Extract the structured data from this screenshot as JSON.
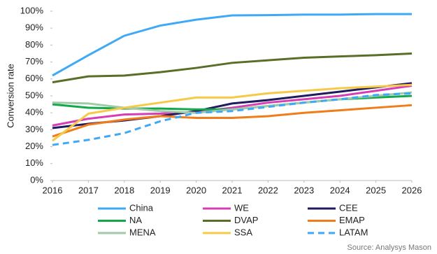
{
  "chart_data": {
    "type": "line",
    "y_label": "Conversion rate",
    "source": "Source: Analysys Mason",
    "x": [
      2016,
      2017,
      2018,
      2019,
      2020,
      2021,
      2022,
      2023,
      2024,
      2025,
      2026
    ],
    "xlim": [
      2016,
      2026
    ],
    "xticks": [
      2016,
      2017,
      2018,
      2019,
      2020,
      2021,
      2022,
      2023,
      2024,
      2025,
      2026
    ],
    "ylim": [
      0,
      100
    ],
    "yticks": [
      {
        "value": 0,
        "label": "0%"
      },
      {
        "value": 10,
        "label": "10%"
      },
      {
        "value": 20,
        "label": "20%"
      },
      {
        "value": 30,
        "label": "30%"
      },
      {
        "value": 40,
        "label": "40%"
      },
      {
        "value": 50,
        "label": "50%"
      },
      {
        "value": 60,
        "label": "60%"
      },
      {
        "value": 70,
        "label": "70%"
      },
      {
        "value": 80,
        "label": "80%"
      },
      {
        "value": 90,
        "label": "90%"
      },
      {
        "value": 100,
        "label": "100%"
      }
    ],
    "series": [
      {
        "name": "China",
        "color": "#3fa9f5",
        "values": [
          62,
          74,
          85.5,
          91.5,
          95,
          97.5,
          97.7,
          98,
          98,
          98.3,
          98.3
        ]
      },
      {
        "name": "WE",
        "color": "#d63fb4",
        "values": [
          32.5,
          36.5,
          39,
          39.5,
          40.5,
          43,
          46,
          48,
          50,
          53,
          56
        ]
      },
      {
        "name": "CEE",
        "color": "#201a5e",
        "values": [
          31,
          33.5,
          35.5,
          38,
          41,
          45.5,
          47.5,
          50,
          52.5,
          55,
          57.5
        ]
      },
      {
        "name": "NA",
        "color": "#14a84a",
        "values": [
          45,
          43,
          42.5,
          42.5,
          42,
          42,
          44,
          46,
          48,
          49,
          50
        ]
      },
      {
        "name": "DVAP",
        "color": "#5a6e28",
        "values": [
          58,
          61.5,
          62,
          64,
          66.5,
          69.5,
          71,
          72.5,
          73.3,
          74,
          75
        ]
      },
      {
        "name": "EMAP",
        "color": "#f07d1a",
        "values": [
          26,
          33,
          36,
          38,
          37,
          37,
          38,
          40,
          41.5,
          43,
          44.5
        ]
      },
      {
        "name": "MENA",
        "color": "#a0caa9",
        "values": [
          46,
          45.5,
          43,
          41,
          40,
          42,
          44,
          46,
          48,
          50,
          52
        ]
      },
      {
        "name": "SSA",
        "color": "#f7c948",
        "values": [
          23.5,
          39.5,
          43,
          46,
          49,
          49,
          51.5,
          53,
          54.5,
          55.5,
          56.5
        ]
      },
      {
        "name": "LATAM",
        "color": "#3fa9f5",
        "dashed": true,
        "values": [
          21,
          24,
          28,
          35,
          40,
          41,
          43.5,
          46,
          48,
          50.5,
          51.5
        ]
      }
    ]
  }
}
